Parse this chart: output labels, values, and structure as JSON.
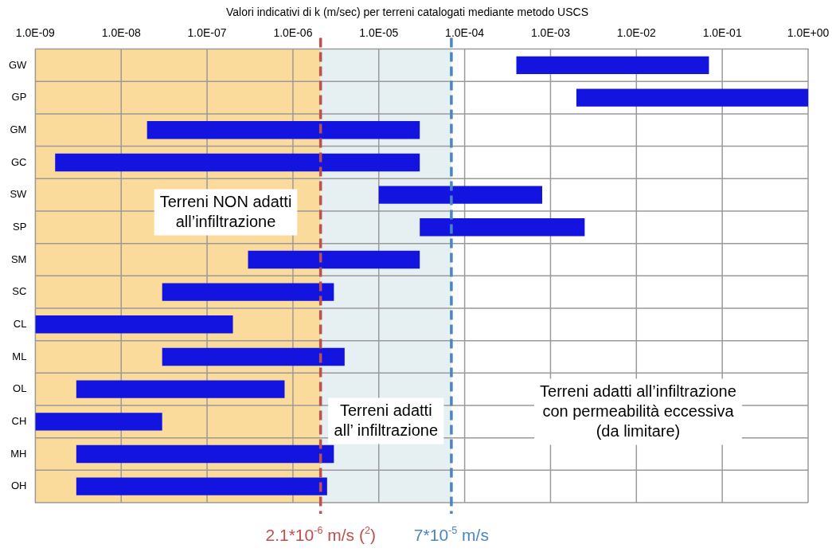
{
  "chart_data": {
    "type": "bar",
    "orientation": "horizontal",
    "title": "Valori indicativi di k (m/sec) per terreni catalogati mediante metodo USCS",
    "categories": [
      "GW",
      "GP",
      "GM",
      "GC",
      "SW",
      "SP",
      "SM",
      "SC",
      "CL",
      "ML",
      "OL",
      "CH",
      "MH",
      "OH"
    ],
    "base": [
      0.0004,
      0.002,
      2e-08,
      1.7e-09,
      1e-05,
      3e-05,
      3e-07,
      3e-08,
      1e-09,
      3e-08,
      3e-09,
      1e-09,
      3e-09,
      3e-09
    ],
    "values": [
      0.0696,
      0.998,
      2.998e-05,
      2.99983e-05,
      0.00079,
      0.00247,
      2.97e-05,
      2.97e-06,
      1.99e-07,
      3.97e-06,
      7.97e-07,
      2.9e-08,
      2.997e-06,
      2.497e-06
    ],
    "color": "#1414e0",
    "log": "x",
    "xlim": [
      1e-09,
      1
    ],
    "xticks": [
      {
        "value": 1e-09,
        "label": "1.0E-09"
      },
      {
        "value": 1e-08,
        "label": "1.0E-08"
      },
      {
        "value": 1e-07,
        "label": "1.0E-07"
      },
      {
        "value": 1e-06,
        "label": "1.0E-06"
      },
      {
        "value": 1e-05,
        "label": "1.0E-05"
      },
      {
        "value": 0.0001,
        "label": "1.0E-04"
      },
      {
        "value": 0.001,
        "label": "1.0E-03"
      },
      {
        "value": 0.01,
        "label": "1.0E-02"
      },
      {
        "value": 0.1,
        "label": "1.0E-01"
      },
      {
        "value": 1,
        "label": "1.0E+00"
      }
    ],
    "grid": true,
    "legend": false,
    "ref_lines": [
      {
        "axis": "x",
        "value": 2.1e-06,
        "label": "2.1*10$^{-6}$ m/s ($^{2}$)",
        "color": "#c0504d",
        "line_style": "dashed"
      },
      {
        "axis": "x",
        "value": 7e-05,
        "label": "7*10$^{-5}$ m/s",
        "color": "#4a86c5",
        "line_style": "dashed"
      }
    ],
    "bands": [
      {
        "axis": "x",
        "from": 1e-09,
        "to": 2.1e-06,
        "label": "Terreni NON adatti all’infiltrazione",
        "color": "#fbdb9b"
      },
      {
        "axis": "x",
        "from": 2.1e-06,
        "to": 7e-05,
        "label": "Terreni adatti all’ infiltrazione",
        "color": "#e6f0f3"
      }
    ],
    "annotations": [
      "Terreni adatti all’infiltrazione con permeabilità eccessiva (da limitare)"
    ]
  }
}
